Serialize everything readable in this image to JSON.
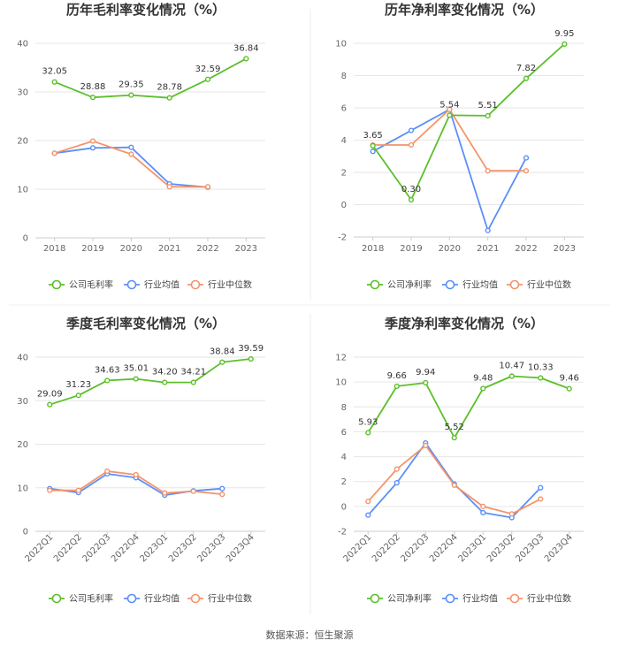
{
  "source": "数据来源：恒生聚源",
  "legend_common": {
    "industry_avg": "行业均值",
    "industry_median": "行业中位数"
  },
  "colors": {
    "company": "#5cbf2a",
    "avg": "#5b8ff9",
    "median": "#f4946b"
  },
  "chart_data": [
    {
      "id": "annual-gross",
      "type": "line",
      "title": "历年毛利率变化情况（%）",
      "categories": [
        "2018",
        "2019",
        "2020",
        "2021",
        "2022",
        "2023"
      ],
      "ylim": [
        0,
        40
      ],
      "yticks": [
        0,
        10,
        20,
        30,
        40
      ],
      "series": [
        {
          "name": "公司毛利率",
          "key": "company",
          "labeled": true,
          "values": [
            32.05,
            28.88,
            29.35,
            28.78,
            32.59,
            36.84
          ]
        },
        {
          "name": "行业均值",
          "key": "avg",
          "labeled": false,
          "values": [
            17.4,
            18.5,
            18.6,
            11.1,
            10.4,
            null
          ]
        },
        {
          "name": "行业中位数",
          "key": "median",
          "labeled": false,
          "values": [
            17.4,
            19.9,
            17.2,
            10.5,
            10.5,
            null
          ]
        }
      ]
    },
    {
      "id": "annual-net",
      "type": "line",
      "title": "历年净利率变化情况（%）",
      "categories": [
        "2018",
        "2019",
        "2020",
        "2021",
        "2022",
        "2023"
      ],
      "ylim": [
        -2,
        10
      ],
      "yticks": [
        -2,
        0,
        2,
        4,
        6,
        8,
        10
      ],
      "series": [
        {
          "name": "公司净利率",
          "key": "company",
          "labeled": true,
          "values": [
            3.65,
            0.3,
            5.54,
            5.51,
            7.82,
            9.95
          ]
        },
        {
          "name": "行业均值",
          "key": "avg",
          "labeled": false,
          "values": [
            3.3,
            4.6,
            5.9,
            -1.6,
            2.9,
            null
          ]
        },
        {
          "name": "行业中位数",
          "key": "median",
          "labeled": false,
          "values": [
            3.7,
            3.7,
            5.9,
            2.1,
            2.1,
            null
          ]
        }
      ]
    },
    {
      "id": "quarterly-gross",
      "type": "line",
      "title": "季度毛利率变化情况（%）",
      "categories": [
        "2022Q1",
        "2022Q2",
        "2022Q3",
        "2022Q4",
        "2023Q1",
        "2023Q2",
        "2023Q3",
        "2023Q4"
      ],
      "ylim": [
        0,
        40
      ],
      "yticks": [
        0,
        10,
        20,
        30,
        40
      ],
      "series": [
        {
          "name": "公司毛利率",
          "key": "company",
          "labeled": true,
          "values": [
            29.09,
            31.23,
            34.63,
            35.01,
            34.2,
            34.21,
            38.84,
            39.59
          ]
        },
        {
          "name": "行业均值",
          "key": "avg",
          "labeled": false,
          "values": [
            9.8,
            8.9,
            13.2,
            12.3,
            8.3,
            9.3,
            9.8,
            null
          ]
        },
        {
          "name": "行业中位数",
          "key": "median",
          "labeled": false,
          "values": [
            9.4,
            9.4,
            13.8,
            13.0,
            8.8,
            9.2,
            8.5,
            null
          ]
        }
      ]
    },
    {
      "id": "quarterly-net",
      "type": "line",
      "title": "季度净利率变化情况（%）",
      "categories": [
        "2022Q1",
        "2022Q2",
        "2022Q3",
        "2022Q4",
        "2023Q1",
        "2023Q2",
        "2023Q3",
        "2023Q4"
      ],
      "ylim": [
        -2,
        12
      ],
      "yticks": [
        -2,
        0,
        2,
        4,
        6,
        8,
        10,
        12
      ],
      "series": [
        {
          "name": "公司净利率",
          "key": "company",
          "labeled": true,
          "values": [
            5.93,
            9.66,
            9.94,
            5.52,
            9.48,
            10.47,
            10.33,
            9.46
          ]
        },
        {
          "name": "行业均值",
          "key": "avg",
          "labeled": false,
          "values": [
            -0.7,
            1.9,
            5.1,
            1.8,
            -0.5,
            -0.9,
            1.5,
            null
          ]
        },
        {
          "name": "行业中位数",
          "key": "median",
          "labeled": false,
          "values": [
            0.4,
            3.0,
            4.9,
            1.7,
            0.0,
            -0.6,
            0.6,
            null
          ]
        }
      ]
    }
  ]
}
